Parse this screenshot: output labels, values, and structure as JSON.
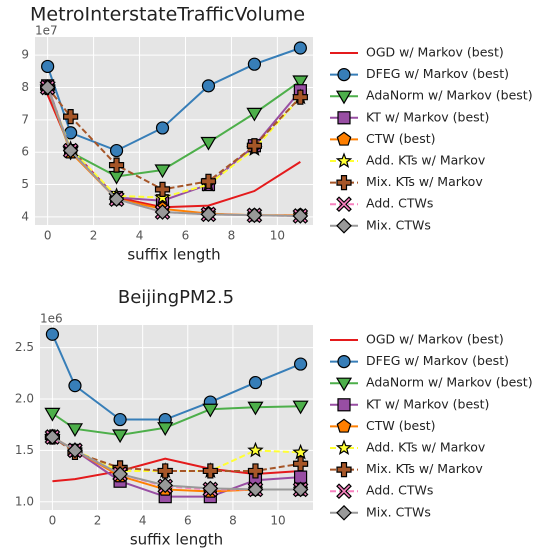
{
  "chart_data": [
    {
      "type": "line",
      "title": "MetroInterstateTrafficVolume",
      "y_offset_label": "1e7",
      "xlabel": "suffix length",
      "x": [
        0,
        1,
        3,
        5,
        7,
        9,
        11
      ],
      "xlim": [
        -0.55,
        11.55
      ],
      "xticks": [
        0,
        2,
        4,
        6,
        8,
        10
      ],
      "ylim": [
        3.75,
        9.56
      ],
      "yticks": [
        4,
        5,
        6,
        7,
        8,
        9
      ],
      "grid": true,
      "series": [
        {
          "name": "OGD w/ Markov (best)",
          "color": "#e41a1c",
          "marker": "none",
          "dash": false,
          "values": [
            7.77,
            6.1,
            4.6,
            4.3,
            4.35,
            4.8,
            5.7
          ]
        },
        {
          "name": "DFEG w/ Markov (best)",
          "color": "#377eb8",
          "marker": "o",
          "dash": false,
          "values": [
            8.65,
            6.6,
            6.05,
            6.75,
            8.05,
            8.72,
            9.22
          ]
        },
        {
          "name": "AdaNorm w/ Markov (best)",
          "color": "#4daf4a",
          "marker": "v",
          "dash": false,
          "values": [
            8.0,
            6.0,
            5.25,
            5.45,
            6.3,
            7.2,
            8.2
          ]
        },
        {
          "name": "KT w/ Markov (best)",
          "color": "#984ea3",
          "marker": "s",
          "dash": false,
          "values": [
            8.05,
            6.05,
            4.6,
            4.5,
            5.0,
            6.2,
            7.9
          ]
        },
        {
          "name": "CTW (best)",
          "color": "#ff7f00",
          "marker": "p",
          "dash": false,
          "values": [
            8.0,
            6.0,
            4.55,
            4.25,
            4.1,
            4.05,
            4.05
          ]
        },
        {
          "name": "Add. KTs w/ Markov",
          "color": "#ffff33",
          "marker": "*",
          "dash": true,
          "values": [
            8.0,
            6.1,
            4.65,
            4.6,
            5.0,
            6.1,
            7.7
          ]
        },
        {
          "name": "Mix. KTs w/ Markov",
          "color": "#a65628",
          "marker": "P",
          "dash": true,
          "values": [
            8.0,
            7.1,
            5.6,
            4.85,
            5.1,
            6.2,
            7.7
          ]
        },
        {
          "name": "Add. CTWs",
          "color": "#f781bf",
          "marker": "X",
          "dash": true,
          "values": [
            8.0,
            6.05,
            4.55,
            4.15,
            4.08,
            4.05,
            4.03
          ]
        },
        {
          "name": "Mix. CTWs",
          "color": "#999999",
          "marker": "D",
          "dash": false,
          "values": [
            8.0,
            6.05,
            4.55,
            4.15,
            4.08,
            4.05,
            4.03
          ]
        }
      ]
    },
    {
      "type": "line",
      "title": "BeijingPM2.5",
      "y_offset_label": "1e6",
      "xlabel": "suffix length",
      "x": [
        0,
        1,
        3,
        5,
        7,
        9,
        11
      ],
      "xlim": [
        -0.55,
        11.55
      ],
      "xticks": [
        0,
        2,
        4,
        6,
        8,
        10
      ],
      "ylim": [
        0.92,
        2.72
      ],
      "yticks": [
        {
          "value": 1,
          "label": "1.0"
        },
        {
          "value": 1.5,
          "label": "1.5"
        },
        {
          "value": 2,
          "label": "2.0"
        },
        {
          "value": 2.5,
          "label": "2.5"
        }
      ],
      "grid": true,
      "series": [
        {
          "name": "OGD w/ Markov (best)",
          "color": "#e41a1c",
          "marker": "none",
          "dash": false,
          "values": [
            1.2,
            1.22,
            1.3,
            1.42,
            1.32,
            1.27,
            1.3
          ]
        },
        {
          "name": "DFEG w/ Markov (best)",
          "color": "#377eb8",
          "marker": "o",
          "dash": false,
          "values": [
            2.63,
            2.13,
            1.8,
            1.8,
            1.97,
            2.16,
            2.34
          ]
        },
        {
          "name": "AdaNorm w/ Markov (best)",
          "color": "#4daf4a",
          "marker": "v",
          "dash": false,
          "values": [
            1.86,
            1.71,
            1.65,
            1.72,
            1.9,
            1.92,
            1.93
          ]
        },
        {
          "name": "KT w/ Markov (best)",
          "color": "#984ea3",
          "marker": "s",
          "dash": false,
          "values": [
            1.63,
            1.5,
            1.2,
            1.05,
            1.05,
            1.21,
            1.24
          ]
        },
        {
          "name": "CTW (best)",
          "color": "#ff7f00",
          "marker": "p",
          "dash": false,
          "values": [
            1.63,
            1.5,
            1.25,
            1.12,
            1.1,
            1.12,
            1.12
          ]
        },
        {
          "name": "Add. KTs w/ Markov",
          "color": "#ffff33",
          "marker": "*",
          "dash": true,
          "values": [
            1.63,
            1.5,
            1.3,
            1.3,
            1.3,
            1.5,
            1.48
          ]
        },
        {
          "name": "Mix. KTs w/ Markov",
          "color": "#a65628",
          "marker": "P",
          "dash": true,
          "values": [
            1.63,
            1.48,
            1.33,
            1.3,
            1.3,
            1.3,
            1.37
          ]
        },
        {
          "name": "Add. CTWs",
          "color": "#f781bf",
          "marker": "X",
          "dash": true,
          "values": [
            1.63,
            1.5,
            1.27,
            1.15,
            1.12,
            1.12,
            1.12
          ]
        },
        {
          "name": "Mix. CTWs",
          "color": "#999999",
          "marker": "D",
          "dash": false,
          "values": [
            1.63,
            1.5,
            1.27,
            1.16,
            1.13,
            1.12,
            1.12
          ]
        }
      ]
    }
  ]
}
